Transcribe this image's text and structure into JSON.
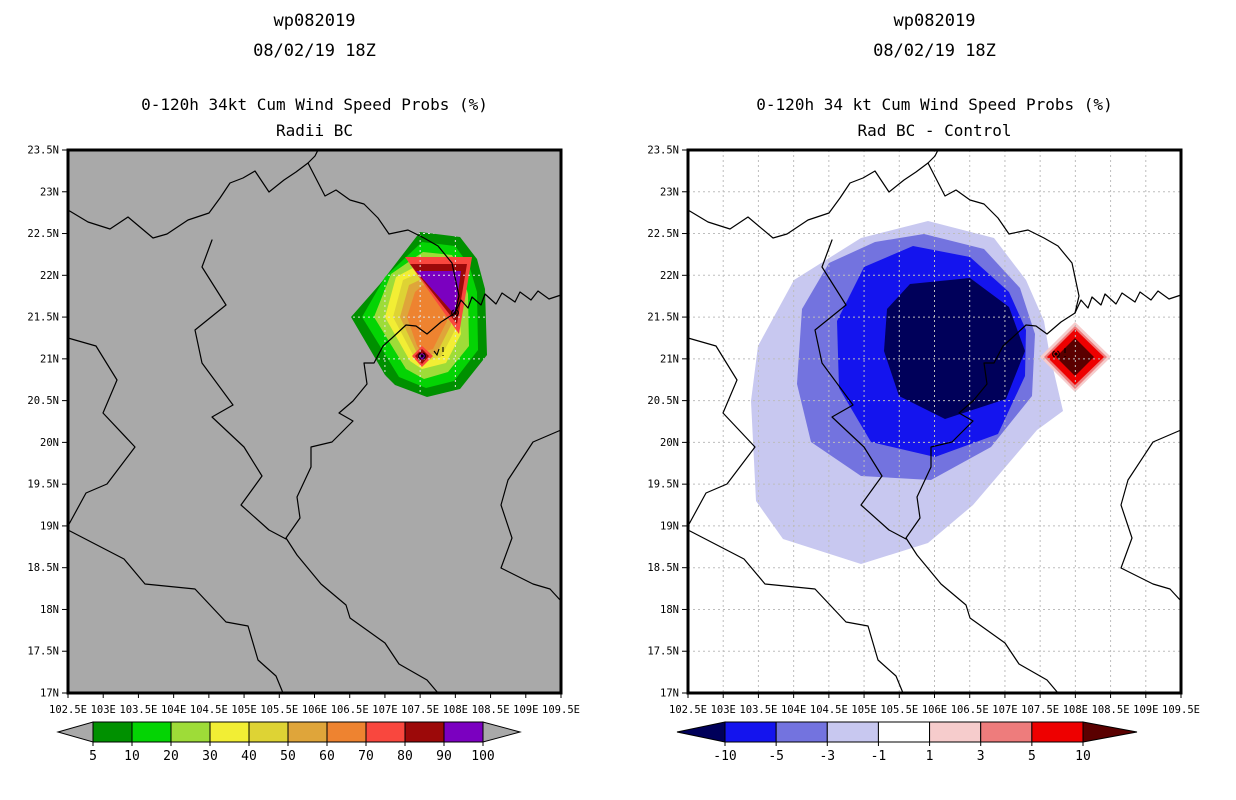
{
  "axes": {
    "lat_ticks": [
      "23.5N",
      "23N",
      "22.5N",
      "22N",
      "21.5N",
      "21N",
      "20.5N",
      "20N",
      "19.5N",
      "19N",
      "18.5N",
      "18N",
      "17.5N",
      "17N"
    ],
    "lon_ticks": [
      "102.5E",
      "103E",
      "103.5E",
      "104E",
      "104.5E",
      "105E",
      "105.5E",
      "106E",
      "106.5E",
      "107E",
      "107.5E",
      "108E",
      "108.5E",
      "109E",
      "109.5E"
    ],
    "lon_range": [
      102.5,
      109.5
    ],
    "lat_range": [
      17,
      23.5
    ],
    "grid_spacing_deg": 0.5
  },
  "panels": [
    {
      "storm_id": "wp082019",
      "datetime": "08/02/19 18Z",
      "subtitle": "0-120h 34kt Cum Wind Speed Probs (%)",
      "map_label": "Radii BC",
      "map_bg": "#A9A9A9",
      "colorbar": {
        "labels": [
          "5",
          "10",
          "20",
          "30",
          "40",
          "50",
          "60",
          "70",
          "80",
          "90",
          "100"
        ],
        "colors": [
          "#009000",
          "#04D404",
          "#9EDC38",
          "#F2EE34",
          "#DED334",
          "#DFA53A",
          "#EE8330",
          "#F9473E",
          "#9C0909",
          "#7B00C0"
        ],
        "arrow_left": "#A9A9A9",
        "arrow_right": "#A9A9A9"
      }
    },
    {
      "storm_id": "wp082019",
      "datetime": "08/02/19 18Z",
      "subtitle": "0-120h 34 kt Cum Wind Speed Probs (%)",
      "map_label": "Rad BC - Control",
      "map_bg": "#FFFFFF",
      "colorbar": {
        "labels": [
          "-10",
          "-5",
          "-3",
          "-1",
          "1",
          "3",
          "5",
          "10"
        ],
        "colors": [
          "#1414EE",
          "#7373DF",
          "#C8C8F0",
          "#FFFFFF",
          "#F6CCCC",
          "#EE7C7C",
          "#EE0000"
        ],
        "arrow_left": "#00005A",
        "arrow_right": "#5A0000"
      }
    }
  ],
  "chart_data": [
    {
      "type": "contour_map",
      "title": "wp082019 08/02/19 18Z",
      "subtitle": "0-120h 34kt Cum Wind Speed Probs (%)",
      "layer": "Radii BC",
      "lon_range": [
        102.5,
        109.5
      ],
      "lat_range": [
        17,
        23.5
      ],
      "grid": "0.5 degree dashed graticule",
      "levels_pct": [
        5,
        10,
        20,
        30,
        40,
        50,
        60,
        70,
        80,
        90,
        100
      ],
      "level_colors": [
        "#009000",
        "#04D404",
        "#9EDC38",
        "#F2EE34",
        "#DED334",
        "#DFA53A",
        "#EE8330",
        "#F9473E",
        "#9C0909",
        "#7B00C0"
      ],
      "background": "uniform gray with black coastlines",
      "features": [
        {
          "name": "probability blob outer 5% contour",
          "extent_lon": [
            106.5,
            108.55
          ],
          "extent_lat": [
            20.4,
            22.6
          ]
        },
        {
          "name": "primary >90% maximum",
          "shape": "triangle",
          "extent_lon": [
            107.4,
            108.1
          ],
          "extent_lat": [
            21.5,
            22.05
          ]
        },
        {
          "name": "secondary >90% maximum",
          "shape": "small diamond",
          "center_lon": 107.5,
          "center_lat": 21.0
        },
        {
          "name": "storm symbols",
          "positions": [
            {
              "lon": 107.5,
              "lat": 21.0
            },
            {
              "lon": 107.75,
              "lat": 21.05
            }
          ]
        }
      ]
    },
    {
      "type": "contour_map_difference",
      "title": "wp082019 08/02/19 18Z",
      "subtitle": "0-120h 34 kt Cum Wind Speed Probs (%)",
      "layer": "Rad BC - Control",
      "lon_range": [
        102.5,
        109.5
      ],
      "lat_range": [
        17,
        23.5
      ],
      "grid": "0.5 degree dashed graticule",
      "levels_pct": [
        -10,
        -5,
        -3,
        -1,
        1,
        3,
        5,
        10
      ],
      "level_colors": [
        "#1414EE",
        "#7373DF",
        "#C8C8F0",
        "#FFFFFF",
        "#F6CCCC",
        "#EE7C7C",
        "#EE0000"
      ],
      "below_min_color": "#00005A",
      "above_max_color": "#5A0000",
      "background": "white with black coastlines",
      "features": [
        {
          "name": "negative difference < -10 core",
          "center_lon": 106.3,
          "center_lat": 21.1,
          "extent_lon": [
            105.3,
            107.3
          ],
          "extent_lat": [
            20.3,
            22.0
          ]
        },
        {
          "name": "outer -1 contour",
          "extent_lon": [
            103.4,
            107.8
          ],
          "extent_lat": [
            18.55,
            22.65
          ]
        },
        {
          "name": "positive difference > +10",
          "shape": "diamond",
          "center_lon": 108.0,
          "center_lat": 21.0,
          "half_width_lon": 0.5,
          "half_height_lat": 0.42
        },
        {
          "name": "storm symbol",
          "positions": [
            {
              "lon": 107.75,
              "lat": 21.05
            }
          ]
        }
      ]
    }
  ]
}
